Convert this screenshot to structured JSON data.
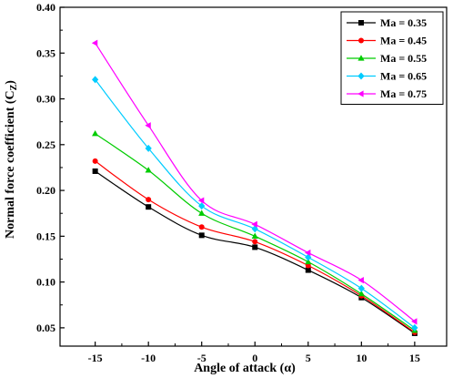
{
  "chart_data": {
    "type": "line",
    "title": "",
    "xlabel": "Angle of attack (α)",
    "ylabel": "Normal force coefficient (C",
    "ylabel_sub": "Z",
    "ylabel_close": ")",
    "x": [
      -15,
      -10,
      -5,
      0,
      5,
      10,
      15
    ],
    "x_tick_labels": [
      "-15",
      "-10",
      "-5",
      "0",
      "5",
      "10",
      "15"
    ],
    "xlim": [
      -18.3,
      18
    ],
    "ylim": [
      0.03,
      0.4
    ],
    "y_ticks": [
      0.05,
      0.1,
      0.15,
      0.2,
      0.25,
      0.3,
      0.35,
      0.4
    ],
    "y_tick_labels": [
      "0.05",
      "0.10",
      "0.15",
      "0.20",
      "0.25",
      "0.30",
      "0.35",
      "0.40"
    ],
    "grid": false,
    "legend_position": "top-right",
    "series": [
      {
        "name": "Ma = 0.35",
        "color": "#000000",
        "marker": "square",
        "values": [
          0.221,
          0.182,
          0.151,
          0.138,
          0.113,
          0.083,
          0.044
        ]
      },
      {
        "name": "Ma = 0.45",
        "color": "#ff0000",
        "marker": "circle",
        "values": [
          0.232,
          0.19,
          0.16,
          0.144,
          0.118,
          0.085,
          0.045
        ]
      },
      {
        "name": "Ma = 0.55",
        "color": "#00cc00",
        "marker": "triangle-up",
        "values": [
          0.262,
          0.222,
          0.175,
          0.15,
          0.122,
          0.087,
          0.047
        ]
      },
      {
        "name": "Ma = 0.65",
        "color": "#00ccff",
        "marker": "diamond",
        "values": [
          0.321,
          0.246,
          0.183,
          0.158,
          0.127,
          0.093,
          0.05
        ]
      },
      {
        "name": "Ma = 0.75",
        "color": "#ff00ff",
        "marker": "triangle-left",
        "values": [
          0.361,
          0.271,
          0.189,
          0.163,
          0.132,
          0.102,
          0.057
        ]
      }
    ]
  }
}
